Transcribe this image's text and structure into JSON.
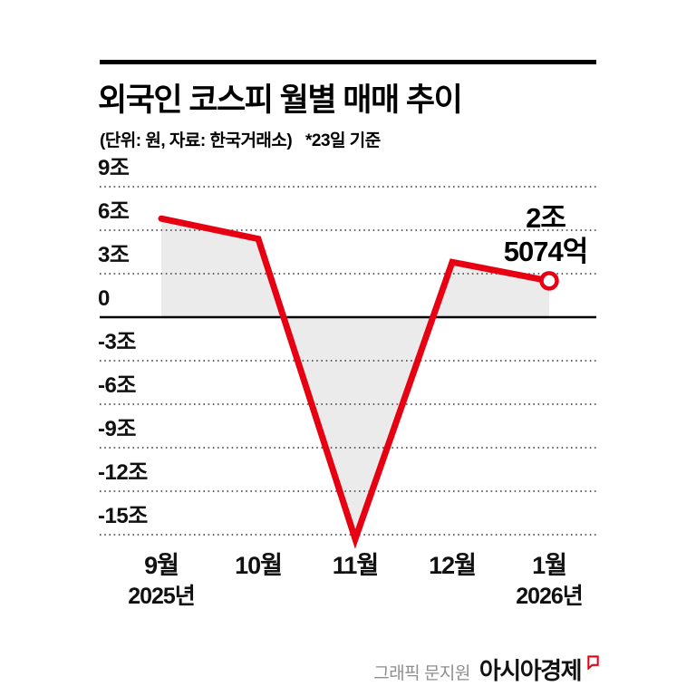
{
  "header": {
    "title": "외국인 코스피 월별 매매 추이",
    "subtitle": "(단위: 원, 자료: 한국거래소)",
    "note": "*23일 기준"
  },
  "chart_data": {
    "type": "line",
    "title": "외국인 코스피 월별 매매 추이",
    "unit": "조 원",
    "source": "한국거래소",
    "categories": [
      "9월",
      "10월",
      "11월",
      "12월",
      "1월"
    ],
    "year_labels": [
      "2025년",
      "",
      "",
      "",
      "2026년"
    ],
    "values": [
      6.8,
      5.4,
      -15.3,
      3.8,
      2.5074
    ],
    "yticks": [
      9,
      6,
      3,
      0,
      -3,
      -6,
      -9,
      -12,
      -15
    ],
    "ytick_labels": [
      "9조",
      "6조",
      "3조",
      "0",
      "-3조",
      "-6조",
      "-9조",
      "-12조",
      "-15조"
    ],
    "ylim": [
      -16.5,
      9.5
    ],
    "grid": "dotted-horizontal",
    "legend": "none",
    "line_color": "#e60012",
    "fill_color": "#ebebeb",
    "annotation": {
      "lines": [
        "2조",
        "5074억"
      ],
      "target_category": "1월",
      "value": 2.5074
    }
  },
  "footer": {
    "credit": "그래픽 문지원",
    "brand": "아시아경제"
  },
  "colors": {
    "line_red": "#e60012",
    "area_gray": "#ebebeb",
    "text": "#111111",
    "muted_gray": "#8e8e8e"
  }
}
